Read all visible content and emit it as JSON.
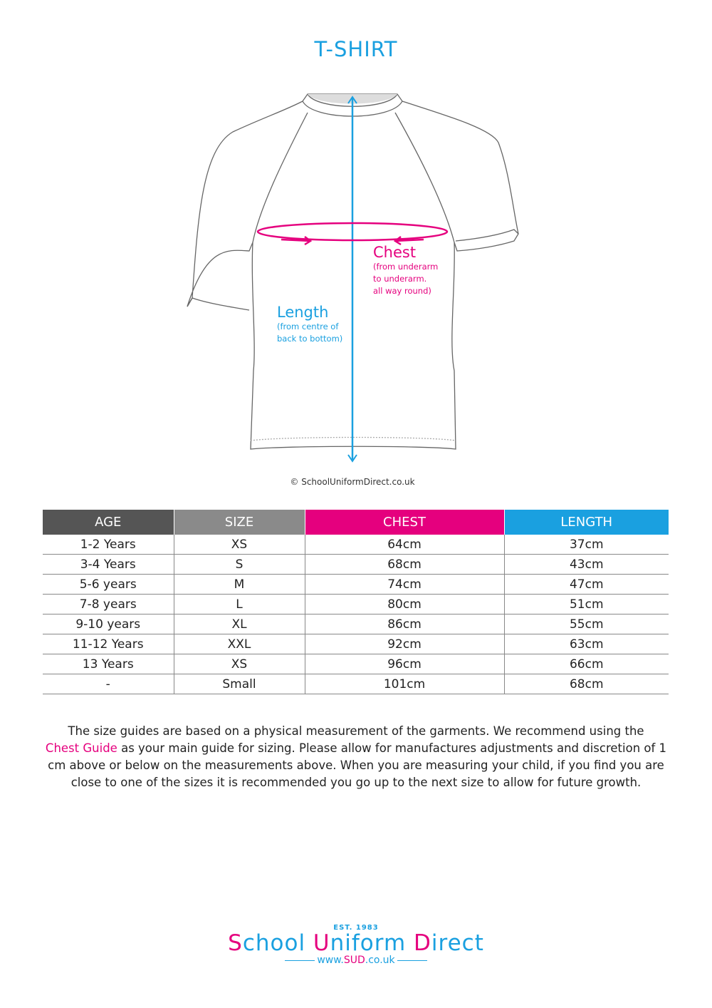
{
  "title": "T-SHIRT",
  "diagram": {
    "chest_label": "Chest",
    "chest_note": [
      "(from underarm",
      "to underarm.",
      "all way round)"
    ],
    "length_label": "Length",
    "length_note": [
      "(from centre of",
      "back to bottom)"
    ],
    "copyright": "© SchoolUniformDirect.co.uk"
  },
  "colors": {
    "pink": "#e5007e",
    "blue": "#1aa0e0",
    "age_header": "#555555",
    "size_header": "#8a8a8a"
  },
  "table": {
    "headers": [
      "AGE",
      "SIZE",
      "CHEST",
      "LENGTH"
    ],
    "rows": [
      [
        "1-2 Years",
        "XS",
        "64cm",
        "37cm"
      ],
      [
        "3-4 Years",
        "S",
        "68cm",
        "43cm"
      ],
      [
        "5-6 years",
        "M",
        "74cm",
        "47cm"
      ],
      [
        "7-8 years",
        "L",
        "80cm",
        "51cm"
      ],
      [
        "9-10 years",
        "XL",
        "86cm",
        "55cm"
      ],
      [
        "11-12 Years",
        "XXL",
        "92cm",
        "63cm"
      ],
      [
        "13 Years",
        "XS",
        "96cm",
        "66cm"
      ],
      [
        "-",
        "Small",
        "101cm",
        "68cm"
      ]
    ]
  },
  "note": {
    "before": "The size guides are based on a physical measurement of the garments. We recommend using the",
    "highlight": "Chest Guide",
    "after": "as your main guide for sizing. Please allow for manufactures adjustments and discretion of  1 cm above or below on the measurements above. When you are measuring your child, if you find you are close to one of the sizes it is recommended you go up to the next size to allow for future growth."
  },
  "logo": {
    "est": "EST. 1983",
    "name_parts": [
      "S",
      "chool ",
      "U",
      "niform ",
      "D",
      "irect"
    ],
    "url_parts": [
      "www.",
      "SUD",
      ".co.uk"
    ]
  }
}
